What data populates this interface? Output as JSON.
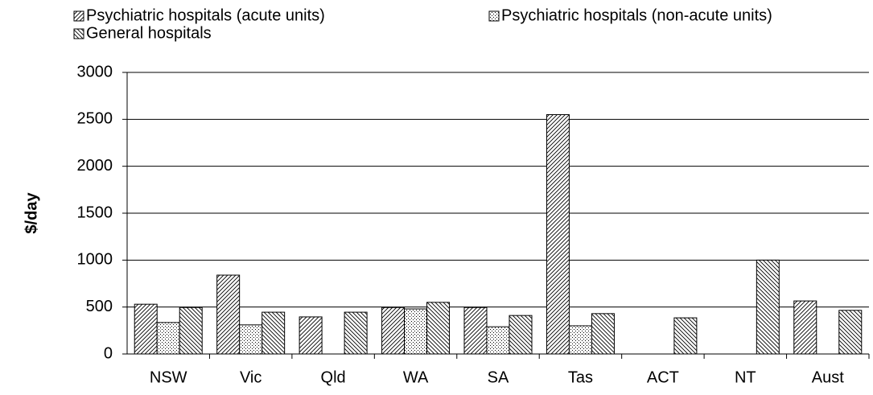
{
  "chart_data": {
    "type": "bar",
    "y_label": "$/day",
    "categories": [
      "NSW",
      "Vic",
      "Qld",
      "WA",
      "SA",
      "Tas",
      "ACT",
      "NT",
      "Aust"
    ],
    "series": [
      {
        "name": "Psychiatric hospitals (acute units)",
        "color": "#000000",
        "values": [
          530,
          840,
          395,
          495,
          495,
          2550,
          null,
          null,
          565
        ]
      },
      {
        "name": "Psychiatric hospitals (non-acute units)",
        "color": "#000000",
        "values": [
          335,
          310,
          null,
          480,
          290,
          300,
          null,
          null,
          null
        ]
      },
      {
        "name": "General hospitals",
        "color": "#000000",
        "values": [
          495,
          445,
          445,
          550,
          410,
          430,
          385,
          1000,
          465
        ]
      }
    ],
    "ylim": [
      0,
      3000
    ],
    "yticks": [
      0,
      500,
      1000,
      1500,
      2000,
      2500,
      3000
    ],
    "grid": true,
    "legend": "top"
  }
}
